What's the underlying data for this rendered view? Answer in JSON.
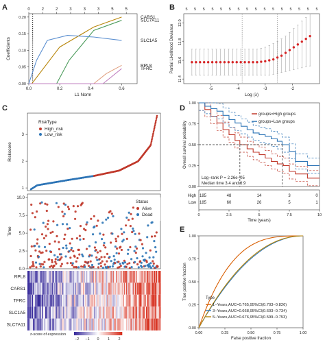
{
  "colors": {
    "high_risk": "#c0392b",
    "low_risk": "#2e75b6",
    "alive": "#c0392b",
    "dead": "#2e75b6",
    "lasso_point": "#d62728",
    "roc_1y": "#d95f02",
    "roc_3y": "#2e75b6",
    "roc_5y": "#b8860b",
    "heat_low": "#3a2d9c",
    "heat_mid": "#ffffff",
    "heat_high": "#d7301f"
  },
  "panels": {
    "A": {
      "letter": "A"
    },
    "B": {
      "letter": "B"
    },
    "C": {
      "letter": "C"
    },
    "D": {
      "letter": "D"
    },
    "E": {
      "letter": "E"
    }
  },
  "chart_data": [
    {
      "panel": "A",
      "type": "line",
      "xlabel": "L1 Norm",
      "ylabel": "Coefficients",
      "xlim": [
        0,
        0.7
      ],
      "ylim": [
        0,
        0.21
      ],
      "x_ticks": [
        "0.0",
        "0.2",
        "0.4",
        "0.6"
      ],
      "y_ticks": [
        "0.00",
        "0.05",
        "0.10",
        "0.15",
        "0.20"
      ],
      "top_ticks": [
        "0",
        "2",
        "2",
        "3",
        "3",
        "3",
        "5",
        "5"
      ],
      "top_tick_x": [
        0.0,
        0.09,
        0.18,
        0.27,
        0.36,
        0.45,
        0.54,
        0.63
      ],
      "dotted_line_x": 0.025,
      "series": [
        {
          "name": "CARS1",
          "color": "#b8860b",
          "x": [
            0,
            0.02,
            0.2,
            0.42,
            0.6
          ],
          "y": [
            0,
            0,
            0.11,
            0.17,
            0.2
          ]
        },
        {
          "name": "SLC7A11",
          "color": "#4a9a5a",
          "x": [
            0,
            0.18,
            0.26,
            0.42,
            0.6
          ],
          "y": [
            0,
            0,
            0.07,
            0.16,
            0.19
          ]
        },
        {
          "name": "SLC1A5",
          "color": "#5b8fd0",
          "x": [
            0,
            0.05,
            0.12,
            0.25,
            0.42,
            0.6
          ],
          "y": [
            0,
            0.07,
            0.13,
            0.145,
            0.14,
            0.13
          ]
        },
        {
          "name": "RPL8",
          "color": "#e0a080",
          "x": [
            0,
            0.42,
            0.5,
            0.6
          ],
          "y": [
            0,
            0,
            0.03,
            0.055
          ]
        },
        {
          "name": "TFRC",
          "color": "#c080c0",
          "x": [
            0,
            0.48,
            0.6
          ],
          "y": [
            0,
            0,
            0.045
          ]
        }
      ]
    },
    {
      "panel": "B",
      "type": "scatter",
      "xlabel": "Log (λ)",
      "ylabel": "Partial Likelihood Deviance",
      "xlim": [
        -6,
        -1
      ],
      "ylim": [
        11.35,
        12.1
      ],
      "x_ticks": [
        "-5",
        "-4",
        "-3",
        "-2"
      ],
      "y_ticks": [
        "11.4",
        "11.6",
        "11.8",
        "12.0"
      ],
      "top_ticks": [
        "5",
        "5",
        "5",
        "5",
        "5",
        "5",
        "5",
        "5",
        "5",
        "5",
        "5",
        "5",
        "5",
        "5",
        "5",
        "5"
      ],
      "vlines": [
        -3.85,
        -2.55
      ],
      "points_x": [
        -5.7,
        -5.55,
        -5.4,
        -5.25,
        -5.1,
        -4.95,
        -4.8,
        -4.65,
        -4.5,
        -4.35,
        -4.2,
        -4.05,
        -3.9,
        -3.75,
        -3.6,
        -3.45,
        -3.3,
        -3.15,
        -3.0,
        -2.85,
        -2.7,
        -2.55,
        -2.4,
        -2.25,
        -2.1,
        -1.95,
        -1.8,
        -1.65,
        -1.5,
        -1.35
      ],
      "points_y": [
        11.58,
        11.58,
        11.58,
        11.58,
        11.58,
        11.58,
        11.58,
        11.58,
        11.58,
        11.58,
        11.58,
        11.58,
        11.58,
        11.58,
        11.58,
        11.58,
        11.58,
        11.585,
        11.59,
        11.6,
        11.61,
        11.63,
        11.65,
        11.68,
        11.71,
        11.74,
        11.77,
        11.8,
        11.83,
        11.86
      ],
      "err_low": [
        11.44,
        11.44,
        11.44,
        11.44,
        11.44,
        11.44,
        11.44,
        11.44,
        11.44,
        11.44,
        11.44,
        11.44,
        11.44,
        11.44,
        11.44,
        11.44,
        11.44,
        11.44,
        11.44,
        11.44,
        11.45,
        11.46,
        11.47,
        11.48,
        11.49,
        11.5,
        11.51,
        11.52,
        11.53,
        11.54
      ],
      "err_high": [
        11.72,
        11.72,
        11.72,
        11.72,
        11.72,
        11.72,
        11.72,
        11.72,
        11.72,
        11.72,
        11.72,
        11.72,
        11.72,
        11.72,
        11.72,
        11.72,
        11.72,
        11.73,
        11.74,
        11.76,
        11.78,
        11.8,
        11.83,
        11.86,
        11.9,
        11.94,
        11.98,
        12.02,
        12.06,
        12.1
      ]
    },
    {
      "panel": "C",
      "type": "scatter",
      "subtitle": "riskscore",
      "legend_title": "RiskType",
      "legend": [
        "High_risk",
        "Low_risk"
      ],
      "ylabel": "Riskscore",
      "y_ticks": [
        "1",
        "2",
        "3"
      ],
      "ylim": [
        0.9,
        3.8
      ],
      "n_points": 370,
      "cutoff_index": 185,
      "curve_knots_x": [
        0,
        0.05,
        0.3,
        0.5,
        0.7,
        0.85,
        0.95,
        1.0
      ],
      "curve_knots_y": [
        0.95,
        1.1,
        1.3,
        1.45,
        1.65,
        2.0,
        2.6,
        3.7
      ]
    },
    {
      "panel": "C-status",
      "type": "scatter",
      "ylabel": "Time",
      "legend_title": "Status",
      "legend": [
        "Alive",
        "Dead"
      ],
      "y_ticks": [
        "0.0",
        "2.5",
        "5.0",
        "7.5",
        "10.0"
      ],
      "ylim": [
        0,
        10.5
      ]
    },
    {
      "panel": "C-heatmap",
      "type": "heatmap",
      "rows": [
        "RPL8",
        "CARS1",
        "TFRC",
        "SLC1A5",
        "SLC7A11"
      ],
      "legend_title": "z-score of expression",
      "legend_ticks": [
        "−2",
        "−1",
        "0",
        "1",
        "2"
      ]
    },
    {
      "panel": "D",
      "type": "line",
      "xlabel": "Time (years)",
      "ylabel": "Overall survival probability",
      "xlim": [
        0,
        10
      ],
      "ylim": [
        0,
        1
      ],
      "x_ticks": [
        "0",
        "2.5",
        "5",
        "7.5",
        "10"
      ],
      "y_ticks": [
        "0.00",
        "0.25",
        "0.50",
        "0.75",
        "1.00"
      ],
      "legend": [
        "groups=High groups",
        "groups=Low groups"
      ],
      "annotation_p": "Log−rank P = 2.26e−05",
      "annotation_median": "Median time 3.4 and 6.9",
      "median_x": [
        3.4,
        6.9
      ],
      "series": [
        {
          "name": "High groups",
          "x": [
            0,
            0.5,
            1,
            1.5,
            2,
            2.5,
            3,
            3.4,
            4,
            4.5,
            5,
            5.5,
            6,
            6.5,
            7,
            7.5,
            8,
            9,
            10
          ],
          "y": [
            1.0,
            0.92,
            0.84,
            0.76,
            0.68,
            0.62,
            0.55,
            0.5,
            0.45,
            0.41,
            0.38,
            0.34,
            0.3,
            0.27,
            0.25,
            0.18,
            0.15,
            0.1,
            0.1
          ]
        },
        {
          "name": "Low groups",
          "x": [
            0,
            0.5,
            1,
            1.5,
            2,
            2.5,
            3,
            3.5,
            4,
            4.5,
            5,
            5.5,
            6,
            6.5,
            6.9,
            7.5,
            8,
            9,
            10
          ],
          "y": [
            1.0,
            0.96,
            0.93,
            0.9,
            0.85,
            0.8,
            0.76,
            0.72,
            0.68,
            0.64,
            0.62,
            0.6,
            0.57,
            0.54,
            0.5,
            0.42,
            0.3,
            0.25,
            0.25
          ]
        }
      ],
      "risk_table": {
        "rows": [
          "High",
          "Low"
        ],
        "values": [
          [
            "185",
            "48",
            "14",
            "3",
            "0"
          ],
          [
            "185",
            "60",
            "26",
            "5",
            "1"
          ]
        ]
      }
    },
    {
      "panel": "E",
      "type": "line",
      "xlabel": "False positive fraction",
      "ylabel": "True positive fraction",
      "xlim": [
        0,
        1
      ],
      "ylim": [
        0,
        1
      ],
      "x_ticks": [
        "0.00",
        "0.25",
        "0.50",
        "0.75",
        "1.00"
      ],
      "y_ticks": [
        "0.00",
        "0.25",
        "0.50",
        "0.75",
        "1.00"
      ],
      "legend_title": "Type",
      "series": [
        {
          "name": "1−Years,AUC=0.765,95%CI(0.703−0.826)",
          "auc": 0.765
        },
        {
          "name": "3−Years,AUC=0.668,95%CI(0.603−0.734)",
          "auc": 0.668
        },
        {
          "name": "5−Years,AUC=0.676,95%CI(0.599−0.753)",
          "auc": 0.676
        }
      ]
    }
  ]
}
